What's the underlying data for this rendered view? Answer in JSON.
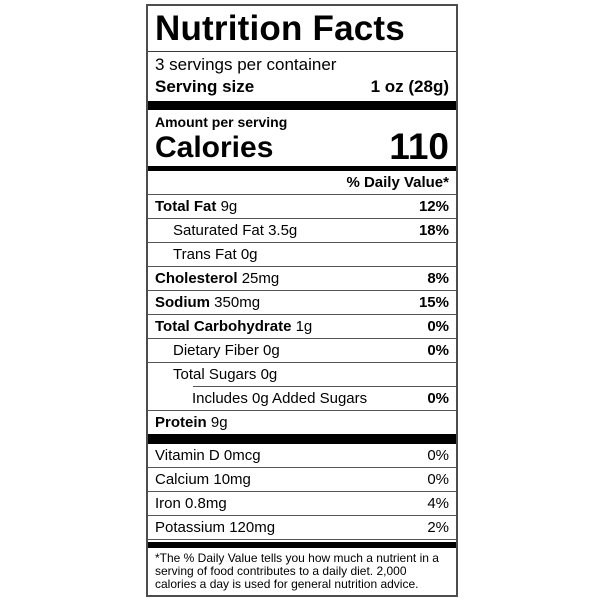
{
  "colors": {
    "background": "#ffffff",
    "text": "#000000",
    "separator_bar": "#000000",
    "divider": "#565656",
    "border": "#4d4d4d"
  },
  "label": {
    "title": "Nutrition Facts",
    "servings_per_container": "3 servings per container",
    "serving_size_label": "Serving size",
    "serving_size_value": "1 oz (28g)",
    "amount_per_serving": "Amount per serving",
    "calories_label": "Calories",
    "calories_value": "110",
    "daily_value_header": "% Daily Value*",
    "nutrients": [
      {
        "name": "Total Fat",
        "amount": "9g",
        "dv": "12%"
      },
      {
        "name": "Saturated Fat",
        "amount": "3.5g",
        "dv": "18%"
      },
      {
        "name": "Trans Fat",
        "amount": "0g",
        "dv": ""
      },
      {
        "name": "Cholesterol",
        "amount": "25mg",
        "dv": "8%"
      },
      {
        "name": "Sodium",
        "amount": "350mg",
        "dv": "15%"
      },
      {
        "name": "Total Carbohydrate",
        "amount": "1g",
        "dv": "0%"
      },
      {
        "name": "Dietary Fiber",
        "amount": "0g",
        "dv": "0%"
      },
      {
        "name": "Total Sugars",
        "amount": "0g",
        "dv": ""
      },
      {
        "name": "Includes 0g Added Sugars",
        "amount": "",
        "dv": "0%"
      },
      {
        "name": "Protein",
        "amount": "9g",
        "dv": ""
      }
    ],
    "vitamins": [
      {
        "name": "Vitamin D",
        "amount": "0mcg",
        "dv": "0%"
      },
      {
        "name": "Calcium",
        "amount": "10mg",
        "dv": "0%"
      },
      {
        "name": "Iron",
        "amount": "0.8mg",
        "dv": "4%"
      },
      {
        "name": "Potassium",
        "amount": "120mg",
        "dv": "2%"
      }
    ],
    "footnote": "*The % Daily Value tells you how much a nutrient in a serving of food contributes to a daily diet. 2,000 calories a day is used for general nutrition advice."
  }
}
